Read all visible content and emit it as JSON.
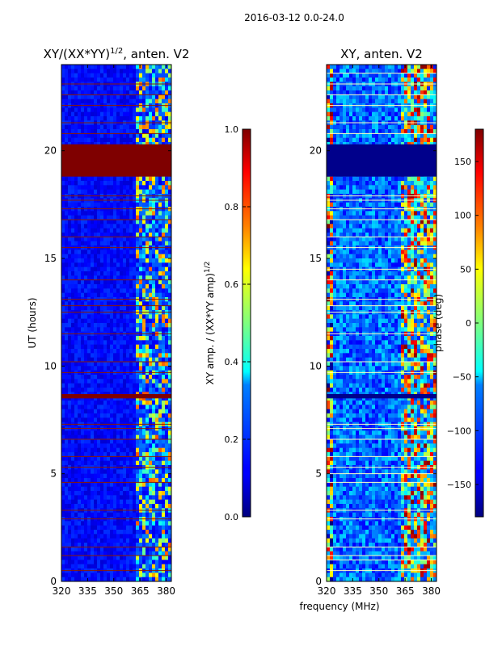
{
  "figure": {
    "suptitle": "2016-03-12 0.0-24.0",
    "xlabel": "frequency (MHz)"
  },
  "chart_data": [
    {
      "type": "heatmap",
      "title": "XY/(XX*YY)",
      "title_exponent": "1/2",
      "title_suffix": ", anten. V2",
      "xlabel": "",
      "ylabel": "UT (hours)",
      "xlim": [
        320,
        383
      ],
      "ylim": [
        0,
        24
      ],
      "xticks": [
        320,
        335,
        350,
        365,
        380
      ],
      "yticks": [
        0,
        5,
        10,
        15,
        20
      ],
      "colorbar": {
        "label": "XY amp. / (XX*YY amp)",
        "label_exponent": "1/2",
        "range": [
          0.0,
          1.0
        ],
        "ticks": [
          "0.0",
          "0.2",
          "0.4",
          "0.6",
          "0.8",
          "1.0"
        ],
        "colormap": "jet"
      },
      "saturated_bands_hours": [
        [
          18.8,
          20.3
        ],
        [
          8.5,
          8.7
        ]
      ],
      "flagged_lines_hours": [
        0.5,
        1.2,
        1.6,
        2.9,
        3.3,
        4.6,
        5.3,
        5.8,
        6.6,
        7.1,
        7.3,
        9.7,
        10.2,
        11.5,
        12.5,
        12.8,
        13.1,
        14.0,
        15.5,
        16.0,
        16.8,
        17.3,
        17.7,
        17.9,
        20.8,
        21.3,
        22.1,
        22.6,
        23.1
      ]
    },
    {
      "type": "heatmap",
      "title": "XY, anten. V2",
      "xlabel": "",
      "ylabel": "",
      "xlim": [
        320,
        383
      ],
      "ylim": [
        0,
        24
      ],
      "xticks": [
        320,
        335,
        350,
        365,
        380
      ],
      "yticks": [
        0,
        5,
        10,
        15,
        20
      ],
      "colorbar": {
        "label": "phase (deg)",
        "range": [
          -180,
          180
        ],
        "ticks": [
          "150",
          "100",
          "50",
          "0",
          "−50",
          "−100",
          "−150"
        ],
        "tick_values": [
          150,
          100,
          50,
          0,
          -50,
          -100,
          -150
        ],
        "colormap": "jet"
      },
      "saturated_bands_hours": [
        [
          18.8,
          20.3
        ],
        [
          8.5,
          8.7
        ]
      ],
      "flagged_lines_hours": [
        0.5,
        1.0,
        1.2,
        1.6,
        2.9,
        3.3,
        4.6,
        5.0,
        5.3,
        5.8,
        6.6,
        7.1,
        7.3,
        9.7,
        10.2,
        11.5,
        12.5,
        12.8,
        13.1,
        14.0,
        14.5,
        15.5,
        16.0,
        16.8,
        17.3,
        17.7,
        17.9,
        20.8,
        21.3,
        22.1,
        22.6,
        23.1,
        23.6
      ]
    }
  ]
}
